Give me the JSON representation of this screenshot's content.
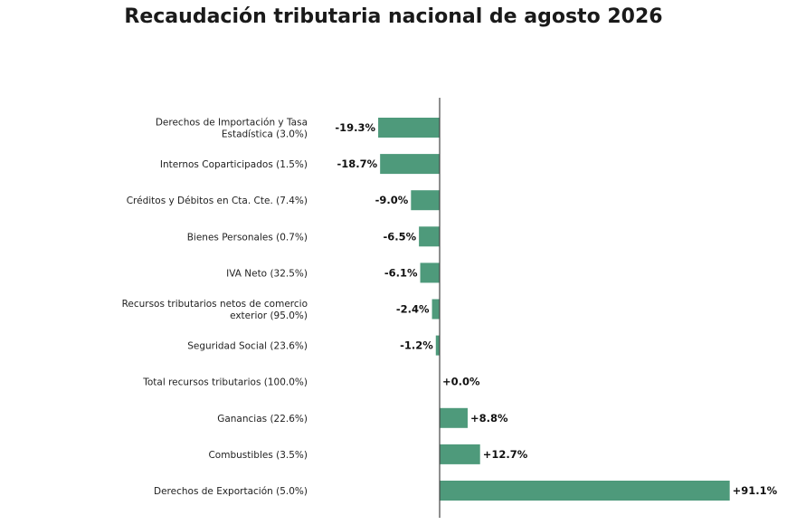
{
  "chart_data": {
    "type": "bar",
    "orientation": "horizontal",
    "title": "Recaudación tributaria nacional de agosto 2026",
    "xlabel": "",
    "ylabel": "",
    "bar_color": "#4e9a7b",
    "xlim": [
      -20,
      91.1
    ],
    "categories": [
      [
        "Derechos de Importación y Tasa",
        "Estadística (3.0%)"
      ],
      [
        "Internos Coparticipados (1.5%)"
      ],
      [
        "Créditos y Débitos en Cta. Cte. (7.4%)"
      ],
      [
        "Bienes Personales (0.7%)"
      ],
      [
        "IVA Neto (32.5%)"
      ],
      [
        "Recursos tributarios netos de comercio",
        "exterior (95.0%)"
      ],
      [
        "Seguridad Social (23.6%)"
      ],
      [
        "Total recursos tributarios (100.0%)"
      ],
      [
        "Ganancias (22.6%)"
      ],
      [
        "Combustibles (3.5%)"
      ],
      [
        "Derechos de Exportación (5.0%)"
      ]
    ],
    "values": [
      -19.3,
      -18.7,
      -9.0,
      -6.5,
      -6.1,
      -2.4,
      -1.2,
      0.0,
      8.8,
      12.7,
      91.1
    ],
    "value_labels": [
      "-19.3%",
      "-18.7%",
      "-9.0%",
      "-6.5%",
      "-6.1%",
      "-2.4%",
      "-1.2%",
      "+0.0%",
      "+8.8%",
      "+12.7%",
      "+91.1%"
    ]
  }
}
